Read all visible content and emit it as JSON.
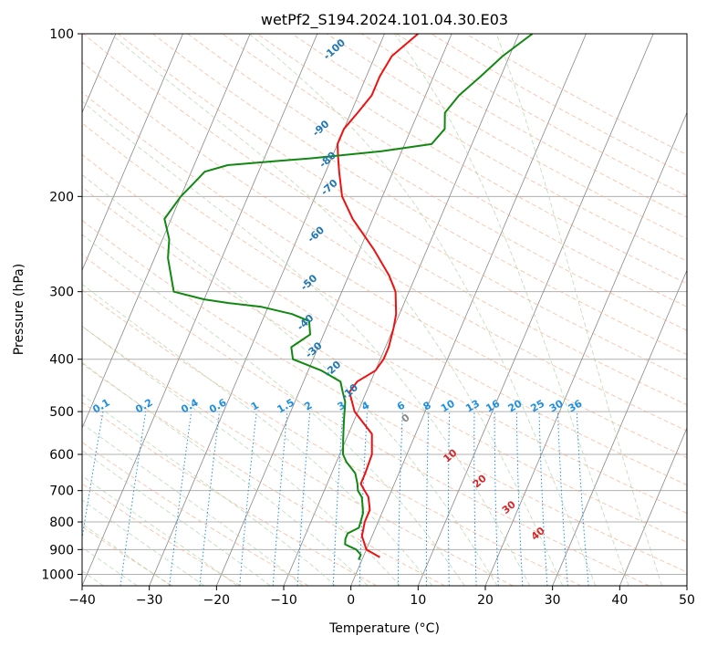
{
  "chart_data": {
    "type": "line",
    "title": "wetPf2_S194.2024.101.04.30.E03",
    "xlabel": "Temperature (°C)",
    "ylabel": "Pressure (hPa)",
    "xlim": [
      -40,
      50
    ],
    "ylim": [
      1050,
      100
    ],
    "y_scale": "log",
    "grid": true,
    "x_ticks": [
      -40,
      -30,
      -20,
      -10,
      0,
      10,
      20,
      30,
      40,
      50
    ],
    "y_ticks": [
      100,
      200,
      300,
      400,
      500,
      600,
      700,
      800,
      900,
      1000
    ],
    "series": [
      {
        "color": "#ee1111",
        "pressure": [
          930,
          900,
          850,
          800,
          760,
          720,
          700,
          680,
          650,
          600,
          550,
          500,
          460,
          440,
          420,
          400,
          380,
          350,
          330,
          300,
          280,
          250,
          220,
          200,
          180,
          170,
          160,
          150,
          140,
          130,
          120,
          110,
          100
        ],
        "values": [
          2.5,
          0,
          -1.5,
          -2,
          -2,
          -3,
          -4,
          -5,
          -5,
          -5.2,
          -6.5,
          -10.5,
          -12.5,
          -12,
          -10,
          -9.5,
          -9.5,
          -10,
          -10.5,
          -12,
          -14,
          -18,
          -23,
          -26,
          -28,
          -29,
          -30,
          -30,
          -29,
          -28,
          -28,
          -27.5,
          -25
        ]
      },
      {
        "color": "#118811",
        "pressure": [
          940,
          920,
          900,
          880,
          860,
          840,
          820,
          800,
          770,
          740,
          720,
          700,
          680,
          650,
          620,
          600,
          560,
          520,
          480,
          460,
          440,
          420,
          400,
          380,
          360,
          340,
          330,
          320,
          315,
          310,
          300,
          260,
          240,
          220,
          200,
          190,
          180,
          175,
          172,
          170,
          165,
          160,
          150,
          140,
          130,
          120,
          110,
          100
        ],
        "values": [
          -0.5,
          -0.5,
          -1.5,
          -3.5,
          -3.8,
          -3.8,
          -2.5,
          -2.6,
          -2.8,
          -3.5,
          -4,
          -5,
          -5.5,
          -6.5,
          -8.5,
          -9.5,
          -10.5,
          -11.5,
          -12.5,
          -13.5,
          -14.5,
          -18,
          -23,
          -24,
          -22,
          -23,
          -26,
          -31,
          -36,
          -40,
          -45,
          -48,
          -49,
          -51,
          -50,
          -49,
          -48,
          -45,
          -38,
          -33,
          -23,
          -16,
          -15,
          -16,
          -15,
          -13,
          -11,
          -8
        ]
      }
    ],
    "mixing_ratio_labels": [
      "0.1",
      "0.2",
      "0.4",
      "0.6",
      "1",
      "1.5",
      "2",
      "3",
      "4",
      "6",
      "8",
      "10",
      "13",
      "16",
      "20",
      "25",
      "30",
      "36"
    ],
    "dry_adiabat_labels": [
      "-100",
      "-90",
      "-80",
      "-70",
      "-60",
      "-50",
      "-40",
      "-30",
      "-20",
      "-10"
    ],
    "moist_adiabat_labels": [
      "0",
      "10",
      "20",
      "30",
      "40"
    ]
  },
  "colors": {
    "temperature": "#ee1111",
    "dewpoint": "#118811",
    "isotherm": "#888888",
    "dry_adiabat": "#f4a582",
    "moist_adiabat": "#a9d3a2",
    "mixing_ratio": "#1f8fe0"
  }
}
